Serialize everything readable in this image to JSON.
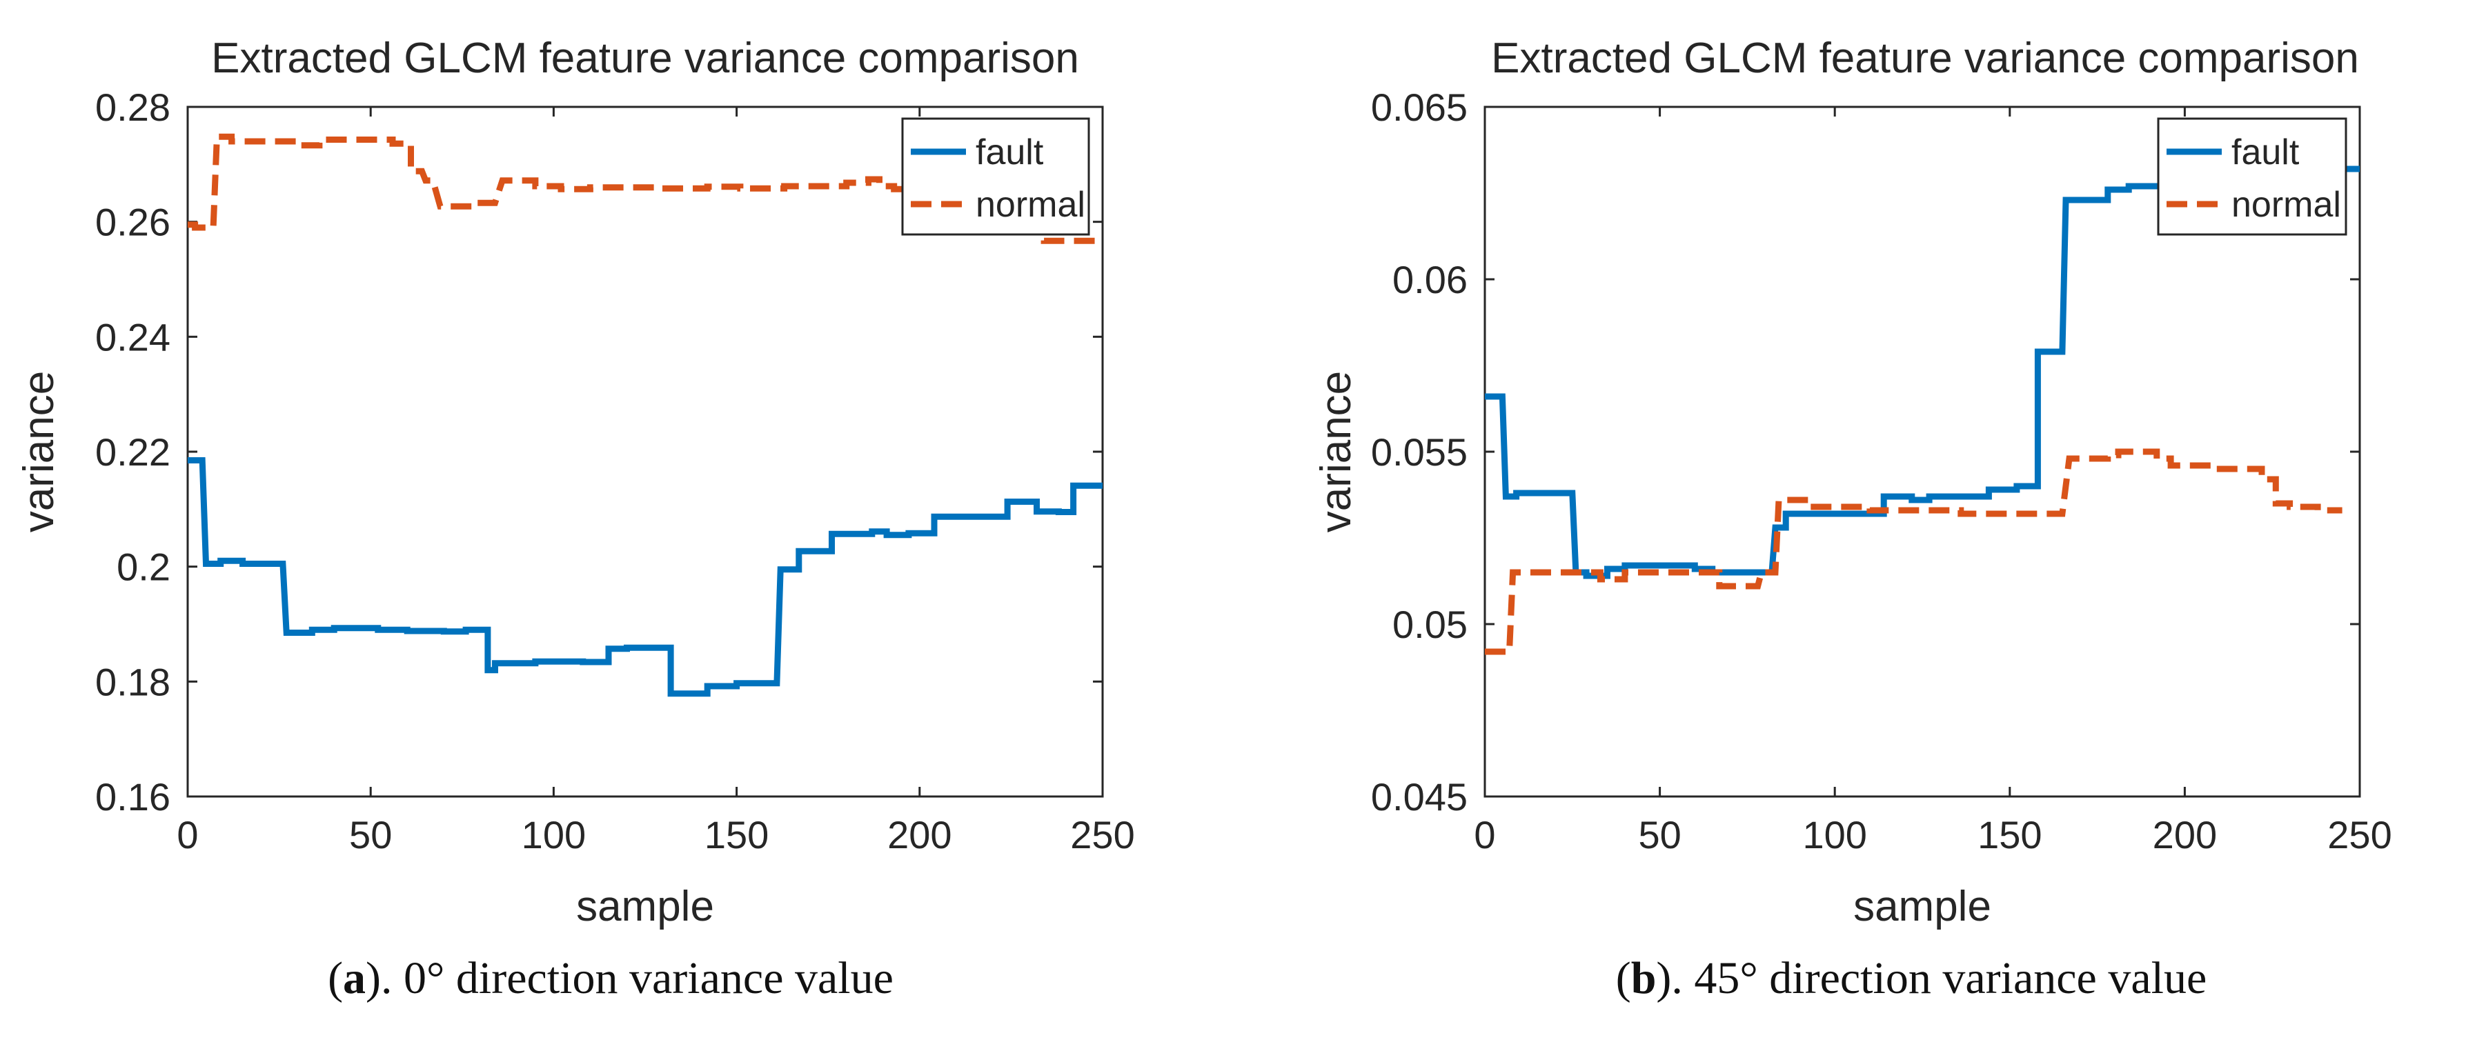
{
  "chart_data": [
    {
      "type": "line",
      "title": "Extracted GLCM feature variance comparison",
      "xlabel": "sample",
      "ylabel": "variance",
      "xlim": [
        0,
        250
      ],
      "ylim": [
        0.16,
        0.28
      ],
      "xticks": [
        0,
        50,
        100,
        150,
        200,
        250
      ],
      "xtick_labels": [
        "0",
        "50",
        "100",
        "150",
        "200",
        "250"
      ],
      "yticks": [
        0.16,
        0.18,
        0.2,
        0.22,
        0.24,
        0.26,
        0.28
      ],
      "ytick_labels": [
        "0.16",
        "0.18",
        "0.2",
        "0.22",
        "0.24",
        "0.26",
        "0.28"
      ],
      "grid": false,
      "legend_position": "top-right",
      "caption": {
        "letter": "a",
        "text": "). 0° direction variance value"
      },
      "series": [
        {
          "name": "fault",
          "color": "#0072BD",
          "dash": "solid",
          "points": [
            [
              0,
              0.2185
            ],
            [
              4,
              0.2185
            ],
            [
              5,
              0.2005
            ],
            [
              9,
              0.2005
            ],
            [
              9,
              0.201
            ],
            [
              15,
              0.201
            ],
            [
              15,
              0.2005
            ],
            [
              26,
              0.2005
            ],
            [
              27,
              0.1885
            ],
            [
              34,
              0.1885
            ],
            [
              34,
              0.189
            ],
            [
              40,
              0.189
            ],
            [
              40,
              0.1893
            ],
            [
              52,
              0.1893
            ],
            [
              52,
              0.189
            ],
            [
              60,
              0.189
            ],
            [
              60,
              0.1888
            ],
            [
              70,
              0.1888
            ],
            [
              70,
              0.1887
            ],
            [
              76,
              0.1887
            ],
            [
              76,
              0.189
            ],
            [
              82,
              0.189
            ],
            [
              82,
              0.182
            ],
            [
              84,
              0.182
            ],
            [
              84,
              0.1832
            ],
            [
              95,
              0.1832
            ],
            [
              95,
              0.1835
            ],
            [
              108,
              0.1835
            ],
            [
              108,
              0.1834
            ],
            [
              115,
              0.1834
            ],
            [
              115,
              0.1857
            ],
            [
              120,
              0.1857
            ],
            [
              120,
              0.1859
            ],
            [
              132,
              0.1859
            ],
            [
              132,
              0.1779
            ],
            [
              142,
              0.1779
            ],
            [
              142,
              0.1792
            ],
            [
              150,
              0.1792
            ],
            [
              150,
              0.1797
            ],
            [
              161,
              0.1797
            ],
            [
              162,
              0.1995
            ],
            [
              167,
              0.1995
            ],
            [
              167,
              0.2027
            ],
            [
              176,
              0.2027
            ],
            [
              176,
              0.2057
            ],
            [
              187,
              0.2057
            ],
            [
              187,
              0.2061
            ],
            [
              191,
              0.2061
            ],
            [
              191,
              0.2055
            ],
            [
              197,
              0.2055
            ],
            [
              197,
              0.2058
            ],
            [
              204,
              0.2058
            ],
            [
              204,
              0.2087
            ],
            [
              224,
              0.2087
            ],
            [
              224,
              0.2113
            ],
            [
              232,
              0.2113
            ],
            [
              232,
              0.2096
            ],
            [
              238,
              0.2096
            ],
            [
              238,
              0.2095
            ],
            [
              242,
              0.2095
            ],
            [
              242,
              0.2141
            ],
            [
              250,
              0.2141
            ]
          ]
        },
        {
          "name": "normal",
          "color": "#D95319",
          "dash": "dashed",
          "points": [
            [
              0,
              0.2595
            ],
            [
              2,
              0.2595
            ],
            [
              2,
              0.259
            ],
            [
              7,
              0.259
            ],
            [
              8,
              0.2748
            ],
            [
              12,
              0.2748
            ],
            [
              12,
              0.274
            ],
            [
              31,
              0.274
            ],
            [
              31,
              0.2733
            ],
            [
              36,
              0.2733
            ],
            [
              36,
              0.2743
            ],
            [
              56,
              0.2743
            ],
            [
              56,
              0.2736
            ],
            [
              61,
              0.2736
            ],
            [
              61,
              0.2688
            ],
            [
              64,
              0.2688
            ],
            [
              65,
              0.2672
            ],
            [
              67,
              0.2672
            ],
            [
              69,
              0.2627
            ],
            [
              78,
              0.2627
            ],
            [
              78,
              0.2633
            ],
            [
              84,
              0.2633
            ],
            [
              86,
              0.2672
            ],
            [
              95,
              0.2672
            ],
            [
              95,
              0.2662
            ],
            [
              102,
              0.2662
            ],
            [
              102,
              0.2657
            ],
            [
              110,
              0.2657
            ],
            [
              110,
              0.266
            ],
            [
              128,
              0.266
            ],
            [
              128,
              0.2658
            ],
            [
              142,
              0.2658
            ],
            [
              142,
              0.2661
            ],
            [
              151,
              0.2661
            ],
            [
              151,
              0.2658
            ],
            [
              163,
              0.2658
            ],
            [
              163,
              0.2662
            ],
            [
              180,
              0.2662
            ],
            [
              180,
              0.2668
            ],
            [
              186,
              0.2668
            ],
            [
              186,
              0.2674
            ],
            [
              189,
              0.2674
            ],
            [
              189,
              0.2662
            ],
            [
              193,
              0.2662
            ],
            [
              193,
              0.2657
            ],
            [
              202,
              0.2657
            ],
            [
              202,
              0.2652
            ],
            [
              208,
              0.2652
            ],
            [
              208,
              0.2642
            ],
            [
              228,
              0.2642
            ],
            [
              228,
              0.2632
            ],
            [
              234,
              0.2632
            ],
            [
              234,
              0.2567
            ],
            [
              250,
              0.2567
            ]
          ]
        }
      ]
    },
    {
      "type": "line",
      "title": "Extracted GLCM feature variance comparison",
      "xlabel": "sample",
      "ylabel": "variance",
      "xlim": [
        0,
        250
      ],
      "ylim": [
        0.045,
        0.065
      ],
      "xticks": [
        0,
        50,
        100,
        150,
        200,
        250
      ],
      "xtick_labels": [
        "0",
        "50",
        "100",
        "150",
        "200",
        "250"
      ],
      "yticks": [
        0.045,
        0.05,
        0.055,
        0.06,
        0.065
      ],
      "ytick_labels": [
        "0.045",
        "0.05",
        "0.055",
        "0.06",
        "0.065"
      ],
      "grid": false,
      "legend_position": "top-right",
      "caption": {
        "letter": "b",
        "text": "). 45° direction variance value"
      },
      "series": [
        {
          "name": "fault",
          "color": "#0072BD",
          "dash": "solid",
          "points": [
            [
              0,
              0.0566
            ],
            [
              5,
              0.0566
            ],
            [
              6,
              0.0537
            ],
            [
              9,
              0.0537
            ],
            [
              9,
              0.0538
            ],
            [
              25,
              0.0538
            ],
            [
              26,
              0.0515
            ],
            [
              29,
              0.0515
            ],
            [
              29,
              0.0514
            ],
            [
              35,
              0.0514
            ],
            [
              35,
              0.0516
            ],
            [
              40,
              0.0516
            ],
            [
              40,
              0.0517
            ],
            [
              60,
              0.0517
            ],
            [
              60,
              0.0516
            ],
            [
              65,
              0.0516
            ],
            [
              65,
              0.0515
            ],
            [
              82,
              0.0515
            ],
            [
              83,
              0.0528
            ],
            [
              86,
              0.0528
            ],
            [
              86,
              0.0532
            ],
            [
              114,
              0.0532
            ],
            [
              114,
              0.0537
            ],
            [
              122,
              0.0537
            ],
            [
              122,
              0.0536
            ],
            [
              127,
              0.0536
            ],
            [
              127,
              0.0537
            ],
            [
              144,
              0.0537
            ],
            [
              144,
              0.0539
            ],
            [
              152,
              0.0539
            ],
            [
              152,
              0.054
            ],
            [
              158,
              0.054
            ],
            [
              158,
              0.0579
            ],
            [
              165,
              0.0579
            ],
            [
              166,
              0.0623
            ],
            [
              178,
              0.0623
            ],
            [
              178,
              0.0626
            ],
            [
              184,
              0.0626
            ],
            [
              184,
              0.0627
            ],
            [
              235,
              0.0627
            ],
            [
              235,
              0.0632
            ],
            [
              250,
              0.0632
            ]
          ]
        },
        {
          "name": "normal",
          "color": "#D95319",
          "dash": "dashed",
          "points": [
            [
              0,
              0.0492
            ],
            [
              7,
              0.0492
            ],
            [
              8,
              0.0515
            ],
            [
              13,
              0.0515
            ],
            [
              13,
              0.0515
            ],
            [
              33,
              0.0515
            ],
            [
              33,
              0.0513
            ],
            [
              40,
              0.0513
            ],
            [
              40,
              0.0515
            ],
            [
              67,
              0.0515
            ],
            [
              67,
              0.0511
            ],
            [
              78,
              0.0511
            ],
            [
              79,
              0.0515
            ],
            [
              83,
              0.0515
            ],
            [
              84,
              0.0536
            ],
            [
              94,
              0.0536
            ],
            [
              94,
              0.0534
            ],
            [
              110,
              0.0534
            ],
            [
              110,
              0.0533
            ],
            [
              136,
              0.0533
            ],
            [
              136,
              0.0532
            ],
            [
              165,
              0.0532
            ],
            [
              167,
              0.0548
            ],
            [
              178,
              0.0548
            ],
            [
              178,
              0.0549
            ],
            [
              181,
              0.0549
            ],
            [
              181,
              0.055
            ],
            [
              192,
              0.055
            ],
            [
              192,
              0.0548
            ],
            [
              196,
              0.0548
            ],
            [
              196,
              0.0546
            ],
            [
              208,
              0.0546
            ],
            [
              208,
              0.0545
            ],
            [
              222,
              0.0545
            ],
            [
              222,
              0.0542
            ],
            [
              226,
              0.0542
            ],
            [
              226,
              0.0535
            ],
            [
              230,
              0.0535
            ],
            [
              230,
              0.0534
            ],
            [
              238,
              0.0534
            ],
            [
              238,
              0.0533
            ],
            [
              245,
              0.0533
            ]
          ]
        }
      ]
    }
  ]
}
